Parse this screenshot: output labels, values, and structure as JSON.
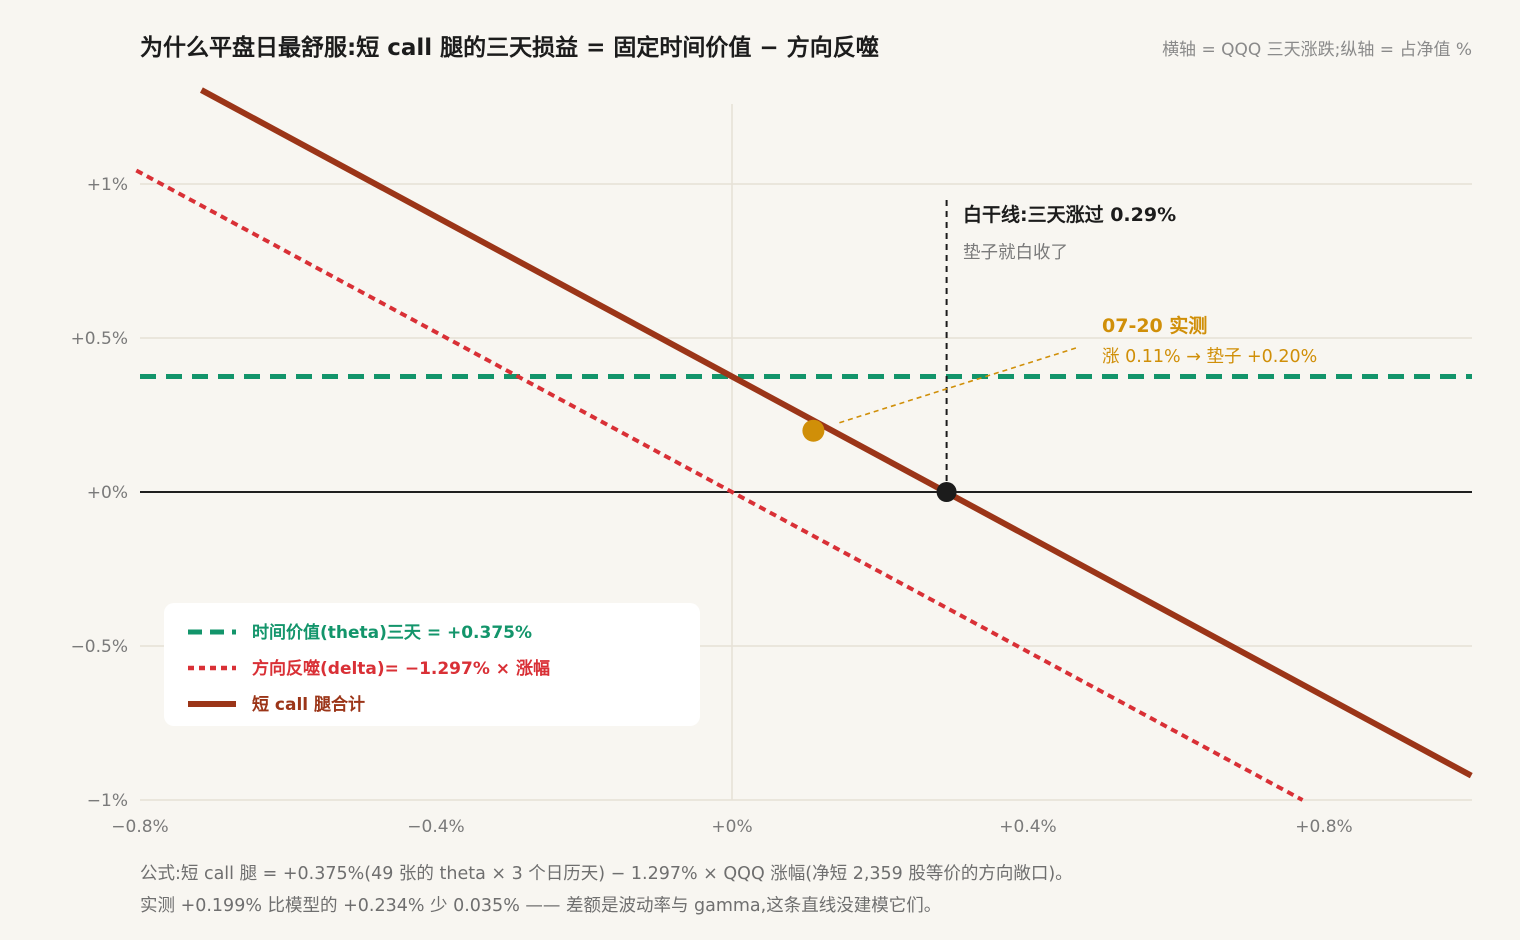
{
  "title": "为什么平盘日最舒服:短 call 腿的三天损益 = 固定时间价值 − 方向反噬",
  "axis_note": "横轴 = QQQ 三天涨跌;纵轴 = 占净值 %",
  "footnote": {
    "line1": "公式:短 call 腿 = +0.375%(49 张的 theta × 3 个日历天) − 1.297% × QQQ 涨幅(净短 2,359 股等价的方向敞口)。",
    "line2": "实测 +0.199% 比模型的 +0.234% 少 0.035% —— 差额是波动率与 gamma,这条直线没建模它们。"
  },
  "colors": {
    "background": "#f8f6f1",
    "theta": "#13956b",
    "delta": "#d93036",
    "total": "#9b3518",
    "observed": "#d08f08",
    "breakeven": "#1c1c1c",
    "grid": "#e6e1d6"
  },
  "chart_data": {
    "type": "line",
    "xlabel": "",
    "ylabel": "",
    "xlim": [
      -0.8,
      1.0
    ],
    "ylim": [
      -1.0,
      1.25
    ],
    "xticks": [
      -0.8,
      -0.4,
      0.0,
      0.4,
      0.8
    ],
    "xtick_labels": [
      "−0.8%",
      "−0.4%",
      "+0%",
      "+0.4%",
      "+0.8%"
    ],
    "yticks": [
      1.0,
      0.5,
      0.0,
      -0.5,
      -1.0
    ],
    "ytick_labels": [
      "+1%",
      "+0.5%",
      "+0%",
      "−0.5%",
      "−1%"
    ],
    "grid": true,
    "legend_position": "bottom-left",
    "series": [
      {
        "name": "时间价值(theta)三天 = +0.375%",
        "style": "dashed",
        "x": [
          -0.8,
          1.0
        ],
        "y": [
          0.375,
          0.375
        ]
      },
      {
        "name": "方向反噬(delta)= −1.297% × 涨幅",
        "style": "dotted",
        "x": [
          -0.805,
          0.771
        ],
        "y": [
          1.044,
          -1.0
        ]
      },
      {
        "name": "短 call 腿合计",
        "style": "solid",
        "x": [
          -0.717,
          0.999
        ],
        "y": [
          1.305,
          -0.921
        ]
      }
    ],
    "points": [
      {
        "role": "breakeven",
        "x": 0.29,
        "y": 0.0
      },
      {
        "role": "observed",
        "x": 0.11,
        "y": 0.199
      }
    ],
    "annotations": {
      "breakeven_title": "白干线:三天涨过 0.29%",
      "breakeven_sub": "垫子就白收了",
      "observed_title": "07-20 实测",
      "observed_sub": "涨 0.11% → 垫子 +0.20%"
    }
  }
}
